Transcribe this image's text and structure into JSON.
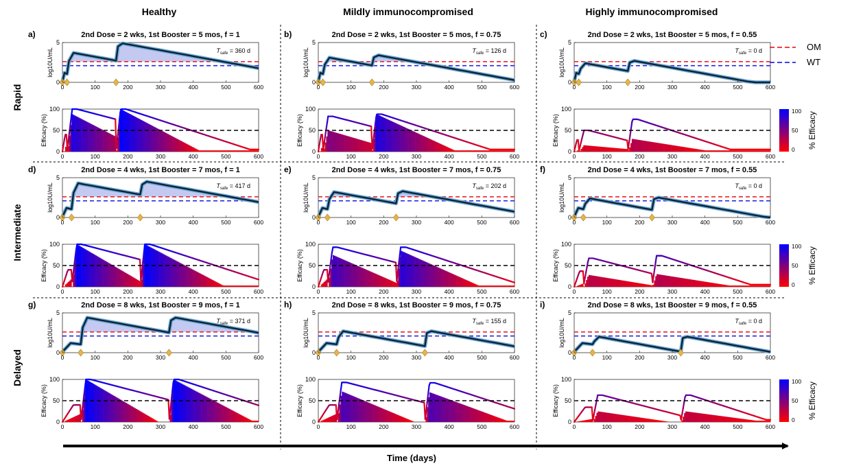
{
  "figure": {
    "column_headers": [
      "Healthy",
      "Mildly immunocompromised",
      "Highly immunocompromised"
    ],
    "row_labels": [
      "Rapid",
      "Intermediate",
      "Delayed"
    ],
    "x_axis_label": "Time (days)",
    "legend": [
      {
        "label": "OM",
        "color": "#e8262b",
        "style": "dashed"
      },
      {
        "label": "WT",
        "color": "#2525e0",
        "style": "dashed"
      }
    ],
    "colorbar": {
      "label": "% Efficacy",
      "ticks": [
        "100",
        "50",
        "0"
      ],
      "color_low": "#ff0000",
      "color_high": "#0000ff"
    },
    "top_ylabel": "log10U/mL",
    "bottom_ylabel": "Efficacy (%)"
  },
  "chart_data": [
    {
      "type": "line",
      "panel": "a)",
      "title": "2nd Dose = 2 wks, 1st Booster = 5 mos, f = 1",
      "dose2_weeks": 2,
      "booster_months": 5,
      "f": "1",
      "t_safe": "360 d",
      "dose_days": [
        0,
        14,
        164
      ],
      "peaks": [
        3.7,
        4.9
      ],
      "xlim": [
        0,
        600
      ],
      "x_ticks": [
        0,
        100,
        200,
        300,
        400,
        500,
        600
      ],
      "top_ylim": [
        0,
        5
      ],
      "top_y_ticks": [
        0,
        5
      ],
      "om_threshold": 2.6,
      "wt_threshold": 2.1,
      "efficacy_ylim": [
        0,
        100
      ],
      "efficacy_y_ticks": [
        0,
        50,
        100
      ],
      "efficacy_threshold": 50,
      "efficacy_peaks": [
        100,
        100
      ],
      "efficacy_bar_peaks": [
        88,
        100
      ]
    },
    {
      "type": "line",
      "panel": "b)",
      "title": "2nd Dose = 2 wks, 1st Booster = 5 mos, f = 0.75",
      "dose2_weeks": 2,
      "booster_months": 5,
      "f": "0.75",
      "t_safe": "126 d",
      "dose_days": [
        0,
        14,
        164
      ],
      "peaks": [
        3.1,
        3.4
      ],
      "xlim": [
        0,
        600
      ],
      "x_ticks": [
        0,
        100,
        200,
        300,
        400,
        500,
        600
      ],
      "top_ylim": [
        0,
        5
      ],
      "top_y_ticks": [
        0,
        5
      ],
      "om_threshold": 2.6,
      "wt_threshold": 2.1,
      "efficacy_ylim": [
        0,
        100
      ],
      "efficacy_y_ticks": [
        0,
        50,
        100
      ],
      "efficacy_threshold": 50,
      "efficacy_peaks": [
        83,
        88
      ],
      "efficacy_bar_peaks": [
        50,
        88
      ]
    },
    {
      "type": "line",
      "panel": "c)",
      "title": "2nd Dose = 2 wks, 1st Booster = 5 mos, f = 0.55",
      "dose2_weeks": 2,
      "booster_months": 5,
      "f": "0.55",
      "t_safe": "0 d",
      "dose_days": [
        0,
        14,
        164
      ],
      "peaks": [
        2.4,
        2.7
      ],
      "xlim": [
        0,
        600
      ],
      "x_ticks": [
        0,
        100,
        200,
        300,
        400,
        500,
        600
      ],
      "top_ylim": [
        0,
        5
      ],
      "top_y_ticks": [
        0,
        5
      ],
      "om_threshold": 2.6,
      "wt_threshold": 2.1,
      "efficacy_ylim": [
        0,
        100
      ],
      "efficacy_y_ticks": [
        0,
        50,
        100
      ],
      "efficacy_threshold": 50,
      "efficacy_peaks": [
        50,
        76
      ],
      "efficacy_bar_peaks": [
        15,
        30
      ]
    },
    {
      "type": "line",
      "panel": "d)",
      "title": "2nd Dose = 4 wks, 1st Booster = 7 mos, f = 1",
      "dose2_weeks": 4,
      "booster_months": 7,
      "f": "1",
      "t_safe": "417 d",
      "dose_days": [
        0,
        28,
        238
      ],
      "peaks": [
        4.3,
        4.5
      ],
      "xlim": [
        0,
        600
      ],
      "x_ticks": [
        0,
        100,
        200,
        300,
        400,
        500,
        600
      ],
      "top_ylim": [
        0,
        5
      ],
      "top_y_ticks": [
        0,
        5
      ],
      "om_threshold": 2.6,
      "wt_threshold": 2.1,
      "efficacy_ylim": [
        0,
        100
      ],
      "efficacy_y_ticks": [
        0,
        50,
        100
      ],
      "efficacy_threshold": 50,
      "efficacy_peaks": [
        100,
        100
      ],
      "efficacy_bar_peaks": [
        100,
        100
      ]
    },
    {
      "type": "line",
      "panel": "e)",
      "title": "2nd Dose = 4 wks, 1st Booster = 7 mos, f = 0.75",
      "dose2_weeks": 4,
      "booster_months": 7,
      "f": "0.75",
      "t_safe": "202 d",
      "dose_days": [
        0,
        28,
        238
      ],
      "peaks": [
        3.2,
        3.3
      ],
      "xlim": [
        0,
        600
      ],
      "x_ticks": [
        0,
        100,
        200,
        300,
        400,
        500,
        600
      ],
      "top_ylim": [
        0,
        5
      ],
      "top_y_ticks": [
        0,
        5
      ],
      "om_threshold": 2.6,
      "wt_threshold": 2.1,
      "efficacy_ylim": [
        0,
        100
      ],
      "efficacy_y_ticks": [
        0,
        50,
        100
      ],
      "efficacy_threshold": 50,
      "efficacy_peaks": [
        93,
        93
      ],
      "efficacy_bar_peaks": [
        75,
        85
      ]
    },
    {
      "type": "line",
      "panel": "f)",
      "title": "2nd Dose = 4 wks, 1st Booster = 7 mos, f = 0.55",
      "dose2_weeks": 4,
      "booster_months": 7,
      "f": "0.55",
      "t_safe": "0 d",
      "dose_days": [
        0,
        28,
        238
      ],
      "peaks": [
        2.4,
        2.5
      ],
      "xlim": [
        0,
        600
      ],
      "x_ticks": [
        0,
        100,
        200,
        300,
        400,
        500,
        600
      ],
      "top_ylim": [
        0,
        5
      ],
      "top_y_ticks": [
        0,
        5
      ],
      "om_threshold": 2.6,
      "wt_threshold": 2.1,
      "efficacy_ylim": [
        0,
        100
      ],
      "efficacy_y_ticks": [
        0,
        50,
        100
      ],
      "efficacy_threshold": 50,
      "efficacy_peaks": [
        67,
        73
      ],
      "efficacy_bar_peaks": [
        28,
        30
      ]
    },
    {
      "type": "line",
      "panel": "g)",
      "title": "2nd Dose = 8 wks, 1st Booster = 9 mos, f = 1",
      "dose2_weeks": 8,
      "booster_months": 9,
      "f": "1",
      "t_safe": "371 d",
      "dose_days": [
        0,
        56,
        326
      ],
      "peaks": [
        4.4,
        4.4
      ],
      "xlim": [
        0,
        600
      ],
      "x_ticks": [
        0,
        100,
        200,
        300,
        400,
        500,
        600
      ],
      "top_ylim": [
        0,
        5
      ],
      "top_y_ticks": [
        0,
        5
      ],
      "om_threshold": 2.6,
      "wt_threshold": 2.1,
      "efficacy_ylim": [
        0,
        100
      ],
      "efficacy_y_ticks": [
        0,
        50,
        100
      ],
      "efficacy_threshold": 50,
      "efficacy_peaks": [
        100,
        100
      ],
      "efficacy_bar_peaks": [
        100,
        100
      ]
    },
    {
      "type": "line",
      "panel": "h)",
      "title": "2nd Dose = 8 wks, 1st Booster = 9 mos, f = 0.75",
      "dose2_weeks": 8,
      "booster_months": 9,
      "f": "0.75",
      "t_safe": "155 d",
      "dose_days": [
        0,
        56,
        326
      ],
      "peaks": [
        2.7,
        2.7
      ],
      "xlim": [
        0,
        600
      ],
      "x_ticks": [
        0,
        100,
        200,
        300,
        400,
        500,
        600
      ],
      "top_ylim": [
        0,
        5
      ],
      "top_y_ticks": [
        0,
        5
      ],
      "om_threshold": 2.6,
      "wt_threshold": 2.1,
      "efficacy_ylim": [
        0,
        100
      ],
      "efficacy_y_ticks": [
        0,
        50,
        100
      ],
      "efficacy_threshold": 50,
      "efficacy_peaks": [
        93,
        92
      ],
      "efficacy_bar_peaks": [
        72,
        70
      ]
    },
    {
      "type": "line",
      "panel": "i)",
      "title": "2nd Dose = 8 wks, 1st Booster = 9 mos, f = 0.55",
      "dose2_weeks": 8,
      "booster_months": 9,
      "f": "0.55",
      "t_safe": "0 d",
      "dose_days": [
        0,
        56,
        326
      ],
      "peaks": [
        2.0,
        2.0
      ],
      "xlim": [
        0,
        600
      ],
      "x_ticks": [
        0,
        100,
        200,
        300,
        400,
        500,
        600
      ],
      "top_ylim": [
        0,
        5
      ],
      "top_y_ticks": [
        0,
        5
      ],
      "om_threshold": 2.6,
      "wt_threshold": 2.1,
      "efficacy_ylim": [
        0,
        100
      ],
      "efficacy_y_ticks": [
        0,
        50,
        100
      ],
      "efficacy_threshold": 50,
      "efficacy_peaks": [
        63,
        63
      ],
      "efficacy_bar_peaks": [
        25,
        25
      ]
    }
  ]
}
